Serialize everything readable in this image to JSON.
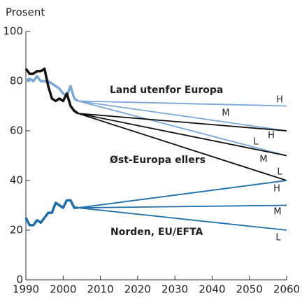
{
  "chart_data": {
    "type": "line",
    "ylabel": "Prosent",
    "xlim": [
      1990,
      2060
    ],
    "xticks": [
      1990,
      2000,
      2010,
      2020,
      2030,
      2040,
      2050,
      2060
    ],
    "ylim": [
      0,
      100
    ],
    "yticks": [
      0,
      20,
      40,
      60,
      80,
      100
    ],
    "series": [
      {
        "name": "Land utenfor Europa",
        "color": "#7ba7d6",
        "label_color": "#2a6db0",
        "x": [
          1990,
          1991,
          1992,
          1993,
          1994,
          1995,
          1996,
          1997,
          1998,
          1999,
          2000,
          2001,
          2002,
          2003,
          2004
        ],
        "values": [
          80,
          81,
          80,
          82,
          80,
          80,
          80,
          79,
          78,
          77,
          75,
          74,
          78,
          73,
          72
        ],
        "projections": [
          {
            "name": "H",
            "x": [
              2004,
              2060
            ],
            "values": [
              72,
              70
            ]
          },
          {
            "name": "M",
            "x": [
              2004,
              2060
            ],
            "values": [
              72,
              60
            ]
          },
          {
            "name": "L",
            "x": [
              2004,
              2060
            ],
            "values": [
              72,
              50
            ]
          }
        ]
      },
      {
        "name": "Øst-Europa ellers",
        "color": "#111111",
        "label_color": "#111111",
        "x": [
          1990,
          1991,
          1992,
          1993,
          1994,
          1995,
          1996,
          1997,
          1998,
          1999,
          2000,
          2001,
          2002,
          2003,
          2004
        ],
        "values": [
          85,
          83,
          83,
          84,
          84,
          85,
          78,
          73,
          72,
          73,
          72,
          75,
          70,
          68,
          67
        ],
        "projections": [
          {
            "name": "H",
            "x": [
              2004,
              2060
            ],
            "values": [
              67,
              60
            ]
          },
          {
            "name": "M",
            "x": [
              2004,
              2060
            ],
            "values": [
              67,
              50
            ]
          },
          {
            "name": "L",
            "x": [
              2004,
              2060
            ],
            "values": [
              67,
              40
            ]
          }
        ]
      },
      {
        "name": "Norden, EU/EFTA",
        "color": "#1f6ea8",
        "label_color": "#1f6ea8",
        "x": [
          1990,
          1991,
          1992,
          1993,
          1994,
          1995,
          1996,
          1997,
          1998,
          1999,
          2000,
          2001,
          2002,
          2003,
          2004
        ],
        "values": [
          25,
          22,
          22,
          24,
          23,
          25,
          27,
          27,
          31,
          30,
          29,
          32,
          32,
          29,
          29
        ],
        "projections": [
          {
            "name": "H",
            "x": [
              2004,
              2060
            ],
            "values": [
              29,
              40
            ]
          },
          {
            "name": "M",
            "x": [
              2004,
              2060
            ],
            "values": [
              29,
              30
            ]
          },
          {
            "name": "L",
            "x": [
              2004,
              2060
            ],
            "values": [
              29,
              20
            ]
          }
        ]
      }
    ]
  }
}
